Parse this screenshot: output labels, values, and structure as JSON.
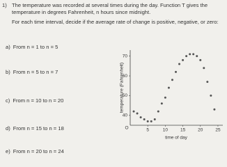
{
  "question": {
    "number": "1)",
    "intro": "The temperature was recorded at several times during the day. Function T gives the temperature in degrees Fahrenheit, n hours since midnight.",
    "prompt": "For each time interval, decide if the average rate of change is positive, negative, or zero:"
  },
  "items": [
    {
      "label": "a)",
      "text": "From n = 1 to n = 5"
    },
    {
      "label": "b)",
      "text": "From n = 5 to n = 7"
    },
    {
      "label": "c)",
      "text": "From n = 10 to n = 20"
    },
    {
      "label": "d)",
      "text": "From n = 15 to n = 18"
    },
    {
      "label": "e)",
      "text": "From n = 20 to n = 24"
    }
  ],
  "chart_data": {
    "type": "scatter",
    "x_label": "time of day",
    "y_label": "temperature (Fahrenheit)",
    "origin_label": "O",
    "x": [
      1,
      2,
      3,
      4,
      5,
      6,
      7,
      8,
      9,
      10,
      11,
      12,
      13,
      14,
      15,
      16,
      17,
      18,
      19,
      20,
      21,
      22,
      23,
      24
    ],
    "values": [
      42,
      41,
      39,
      38,
      37,
      37,
      38,
      42,
      46,
      49,
      54,
      58,
      62,
      66,
      68,
      70,
      71,
      71,
      70,
      68,
      64,
      57,
      50,
      43
    ],
    "color": "#555555",
    "xlim": [
      0,
      26
    ],
    "xticks": [
      5,
      10,
      15,
      20,
      25
    ],
    "ylim": [
      35,
      72
    ],
    "yticks": [
      40,
      50,
      60,
      70
    ]
  }
}
